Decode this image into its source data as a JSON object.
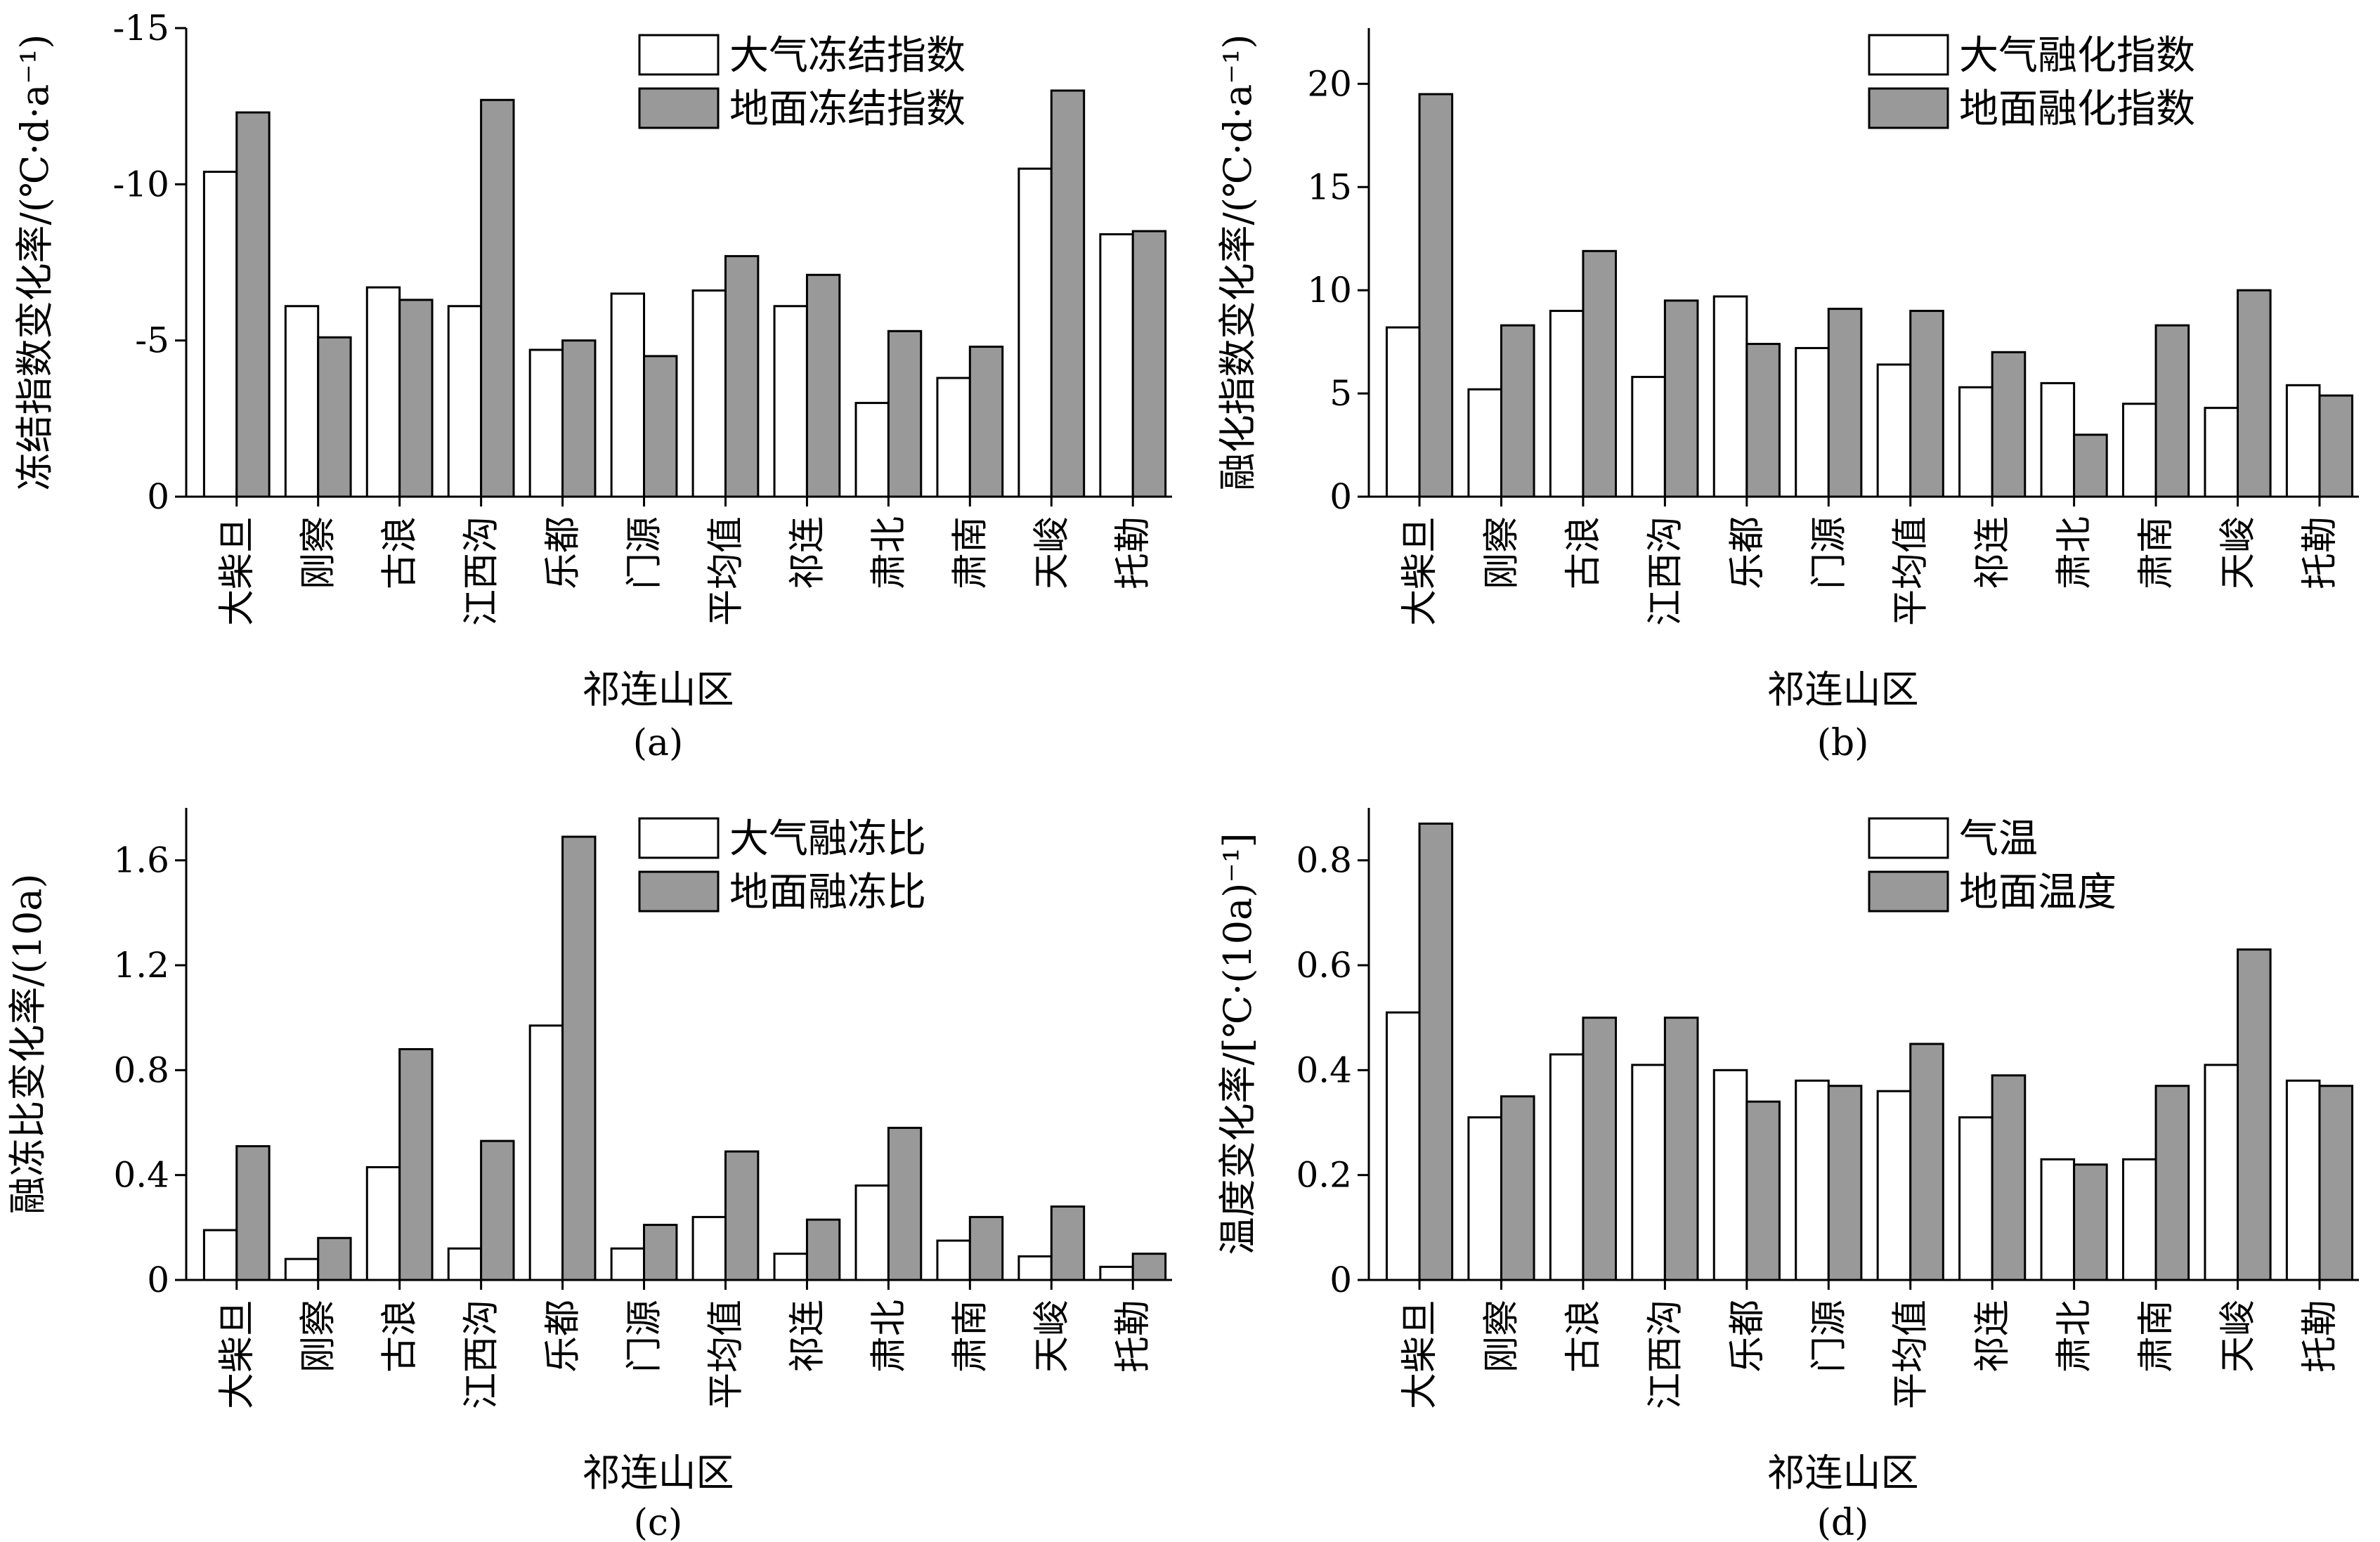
{
  "chart_data": [
    {
      "type": "bar",
      "panel_label": "(a)",
      "categories": [
        "大柴旦",
        "刚察",
        "古浪",
        "江西沟",
        "乐都",
        "门源",
        "平均值",
        "祁连",
        "肃北",
        "肃南",
        "天峻",
        "托勒"
      ],
      "series": [
        {
          "name": "大气冻结指数",
          "color": "#ffffff",
          "values": [
            -10.4,
            -6.1,
            -6.7,
            -6.1,
            -4.7,
            -6.5,
            -6.6,
            -6.1,
            -3.0,
            -3.8,
            -10.5,
            -8.4
          ]
        },
        {
          "name": "地面冻结指数",
          "color": "#999999",
          "values": [
            -12.3,
            -5.1,
            -6.3,
            -12.7,
            -5.0,
            -4.5,
            -7.7,
            -7.1,
            -5.3,
            -4.8,
            -13.0,
            -8.5
          ]
        }
      ],
      "xlabel": "祁连山区",
      "ylabel": "冻结指数变化率/(℃·d·a⁻¹)",
      "yticks": [
        "-15",
        "-10",
        "-5",
        "0"
      ],
      "ylim": [
        0,
        -15
      ],
      "y_inverted": true,
      "legend_position": "top-right"
    },
    {
      "type": "bar",
      "panel_label": "(b)",
      "categories": [
        "大柴旦",
        "刚察",
        "古浪",
        "江西沟",
        "乐都",
        "门源",
        "平均值",
        "祁连",
        "肃北",
        "肃南",
        "天峻",
        "托勒"
      ],
      "series": [
        {
          "name": "大气融化指数",
          "color": "#ffffff",
          "values": [
            8.2,
            5.2,
            9.0,
            5.8,
            9.7,
            7.2,
            6.4,
            5.3,
            5.5,
            4.5,
            4.3,
            5.4
          ]
        },
        {
          "name": "地面融化指数",
          "color": "#999999",
          "values": [
            19.5,
            8.3,
            11.9,
            9.5,
            7.4,
            9.1,
            9.0,
            7.0,
            3.0,
            8.3,
            10.0,
            4.9
          ]
        }
      ],
      "xlabel": "祁连山区",
      "ylabel": "融化指数变化率/(℃·d·a⁻¹)",
      "yticks": [
        "0",
        "5",
        "10",
        "15",
        "20"
      ],
      "ylim": [
        0,
        22.7
      ],
      "legend_position": "top-right"
    },
    {
      "type": "bar",
      "panel_label": "(c)",
      "categories": [
        "大柴旦",
        "刚察",
        "古浪",
        "江西沟",
        "乐都",
        "门源",
        "平均值",
        "祁连",
        "肃北",
        "肃南",
        "天峻",
        "托勒"
      ],
      "series": [
        {
          "name": "大气融冻比",
          "color": "#ffffff",
          "values": [
            0.19,
            0.08,
            0.43,
            0.12,
            0.97,
            0.12,
            0.24,
            0.1,
            0.36,
            0.15,
            0.09,
            0.05
          ]
        },
        {
          "name": "地面融冻比",
          "color": "#999999",
          "values": [
            0.51,
            0.16,
            0.88,
            0.53,
            1.69,
            0.21,
            0.49,
            0.23,
            0.58,
            0.24,
            0.28,
            0.1
          ]
        }
      ],
      "xlabel": "祁连山区",
      "ylabel": "融冻比变化率/(10a)",
      "yticks": [
        "0",
        "0.4",
        "0.8",
        "1.2",
        "1.6"
      ],
      "ylim": [
        0,
        1.8
      ],
      "legend_position": "top-right"
    },
    {
      "type": "bar",
      "panel_label": "(d)",
      "categories": [
        "大柴旦",
        "刚察",
        "古浪",
        "江西沟",
        "乐都",
        "门源",
        "平均值",
        "祁连",
        "肃北",
        "肃南",
        "天峻",
        "托勒"
      ],
      "series": [
        {
          "name": "气温",
          "color": "#ffffff",
          "values": [
            0.51,
            0.31,
            0.43,
            0.41,
            0.4,
            0.38,
            0.36,
            0.31,
            0.23,
            0.23,
            0.41,
            0.38
          ]
        },
        {
          "name": "地面温度",
          "color": "#999999",
          "values": [
            0.87,
            0.35,
            0.5,
            0.5,
            0.34,
            0.37,
            0.45,
            0.39,
            0.22,
            0.37,
            0.63,
            0.37
          ]
        }
      ],
      "xlabel": "祁连山区",
      "ylabel": "温度变化率/[℃·(10a)⁻¹]",
      "yticks": [
        "0",
        "0.2",
        "0.4",
        "0.6",
        "0.8"
      ],
      "ylim": [
        0,
        0.9
      ],
      "legend_position": "top-right"
    }
  ]
}
